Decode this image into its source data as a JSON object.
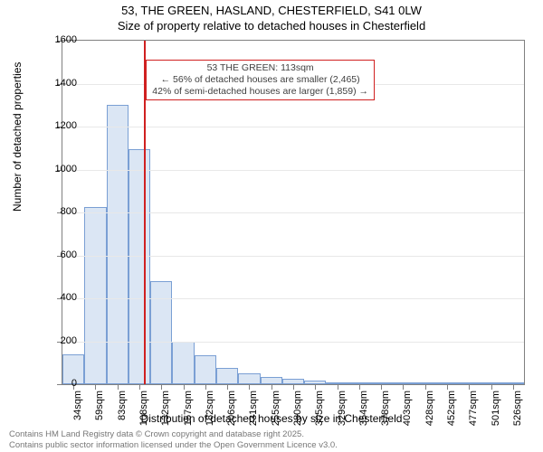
{
  "title": {
    "line1": "53, THE GREEN, HASLAND, CHESTERFIELD, S41 0LW",
    "line2": "Size of property relative to detached houses in Chesterfield",
    "fontsize": 13
  },
  "chart": {
    "type": "histogram",
    "background_color": "#ffffff",
    "grid_color": "#e8e8e8",
    "axis_color": "#808080",
    "bar_fill": "#dbe6f4",
    "bar_border": "#7a9fd4",
    "ylabel": "Number of detached properties",
    "xlabel": "Distribution of detached houses by size in Chesterfield",
    "label_fontsize": 12,
    "tick_fontsize": 11,
    "ylim": [
      0,
      1600
    ],
    "ytick_step": 200,
    "x_categories": [
      "34sqm",
      "59sqm",
      "83sqm",
      "108sqm",
      "132sqm",
      "157sqm",
      "182sqm",
      "206sqm",
      "231sqm",
      "255sqm",
      "280sqm",
      "305sqm",
      "329sqm",
      "354sqm",
      "378sqm",
      "403sqm",
      "428sqm",
      "452sqm",
      "477sqm",
      "501sqm",
      "526sqm"
    ],
    "values": [
      140,
      825,
      1300,
      1095,
      480,
      200,
      135,
      75,
      50,
      35,
      25,
      18,
      5,
      3,
      2,
      2,
      1,
      1,
      1,
      1,
      1
    ],
    "bar_width": 1.0,
    "reference_line": {
      "x_index": 3.2,
      "color": "#d02020",
      "width": 2
    },
    "annotation": {
      "line1": "53 THE GREEN: 113sqm",
      "line2": "← 56% of detached houses are smaller (2,465)",
      "line3": "42% of semi-detached houses are larger (1,859) →",
      "border_color": "#d02020",
      "text_color": "#404040",
      "x_index": 3.8,
      "y_value": 1420,
      "fontsize": 10.5
    }
  },
  "footer": {
    "line1": "Contains HM Land Registry data © Crown copyright and database right 2025.",
    "line2": "Contains public sector information licensed under the Open Government Licence v3.0.",
    "color": "#777777",
    "fontsize": 9.5
  }
}
